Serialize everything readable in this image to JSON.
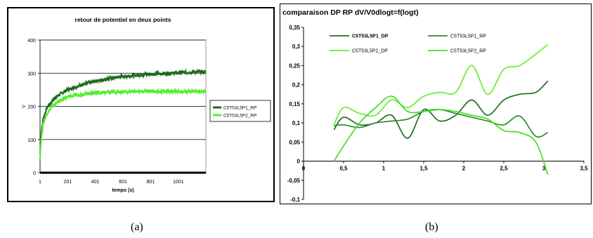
{
  "chart_data": [
    {
      "type": "line",
      "title": "retour de potentiel en deux points",
      "xlabel": "temps (s)",
      "ylabel": "V",
      "xlim": [
        1,
        1200
      ],
      "ylim": [
        0,
        400
      ],
      "x_ticks": [
        "1",
        "201",
        "401",
        "601",
        "801",
        "1001"
      ],
      "y_ticks": [
        "0",
        "100",
        "200",
        "300",
        "400"
      ],
      "grid": "horizontal",
      "legend": "right",
      "series": [
        {
          "name": "C5T53L5P1_RP",
          "color": "#1e6b1e",
          "x": [
            1,
            10,
            25,
            50,
            100,
            150,
            200,
            300,
            400,
            500,
            600,
            700,
            800,
            900,
            1000,
            1100,
            1200
          ],
          "y": [
            55,
            120,
            165,
            195,
            223,
            238,
            250,
            265,
            276,
            284,
            290,
            294,
            297,
            299,
            301,
            303,
            304
          ]
        },
        {
          "name": "C5T53L5P2_RP",
          "color": "#55ee33",
          "x": [
            1,
            10,
            25,
            50,
            100,
            150,
            200,
            300,
            400,
            500,
            600,
            700,
            800,
            900,
            1000,
            1100,
            1200
          ],
          "y": [
            45,
            105,
            150,
            178,
            205,
            218,
            228,
            237,
            241,
            243,
            244,
            245,
            245,
            245,
            245,
            245,
            245
          ]
        }
      ]
    },
    {
      "type": "line",
      "title": "comparaison DP RP dV/V0dlogt=f(logt)",
      "xlim": [
        0,
        3.5
      ],
      "ylim": [
        -0.1,
        0.35
      ],
      "x_ticks": [
        "0",
        "0,5",
        "1",
        "1,5",
        "2",
        "2,5",
        "3",
        "3,5"
      ],
      "y_ticks": [
        "-0,1",
        "-0,05",
        "0",
        "0,05",
        "0,1",
        "0,15",
        "0,2",
        "0,25",
        "0,3",
        "0,35"
      ],
      "grid": "none",
      "legend": "top",
      "series": [
        {
          "name": "C5T53L5P1_DP",
          "color": "#1e6b1e",
          "x": [
            0.38,
            0.5,
            0.7,
            0.9,
            1.1,
            1.3,
            1.5,
            1.7,
            1.9,
            2.1,
            2.3,
            2.5,
            2.7,
            2.9,
            3.05
          ],
          "y": [
            0.082,
            0.115,
            0.095,
            0.1,
            0.12,
            0.06,
            0.135,
            0.105,
            0.12,
            0.16,
            0.12,
            0.16,
            0.175,
            0.18,
            0.21
          ]
        },
        {
          "name": "C5T53L5P1_RP",
          "color": "#2e8b2e",
          "x": [
            0.38,
            0.5,
            0.7,
            0.9,
            1.1,
            1.3,
            1.5,
            1.7,
            1.9,
            2.1,
            2.3,
            2.5,
            2.7,
            2.9,
            3.05
          ],
          "y": [
            0.093,
            0.095,
            0.088,
            0.1,
            0.105,
            0.11,
            0.13,
            0.135,
            0.125,
            0.115,
            0.105,
            0.095,
            0.118,
            0.065,
            0.075
          ]
        },
        {
          "name": "C5T53L5P2_DP",
          "color": "#66ee33",
          "x": [
            0.38,
            0.5,
            0.7,
            0.9,
            1.1,
            1.3,
            1.5,
            1.7,
            1.9,
            2.1,
            2.3,
            2.5,
            2.7,
            2.9,
            3.05
          ],
          "y": [
            0.095,
            0.14,
            0.125,
            0.12,
            0.16,
            0.14,
            0.17,
            0.18,
            0.18,
            0.25,
            0.175,
            0.24,
            0.25,
            0.28,
            0.305
          ]
        },
        {
          "name": "C5T53L5P2_RP",
          "color": "#44dd22",
          "x": [
            0.38,
            0.5,
            0.7,
            0.9,
            1.1,
            1.3,
            1.5,
            1.7,
            1.9,
            2.1,
            2.3,
            2.5,
            2.7,
            2.9,
            3.05
          ],
          "y": [
            0.0,
            0.04,
            0.1,
            0.14,
            0.17,
            0.13,
            0.13,
            0.135,
            0.13,
            0.12,
            0.11,
            0.08,
            0.075,
            0.05,
            -0.035
          ]
        }
      ]
    }
  ],
  "captions": [
    "(a)",
    "(b)"
  ]
}
